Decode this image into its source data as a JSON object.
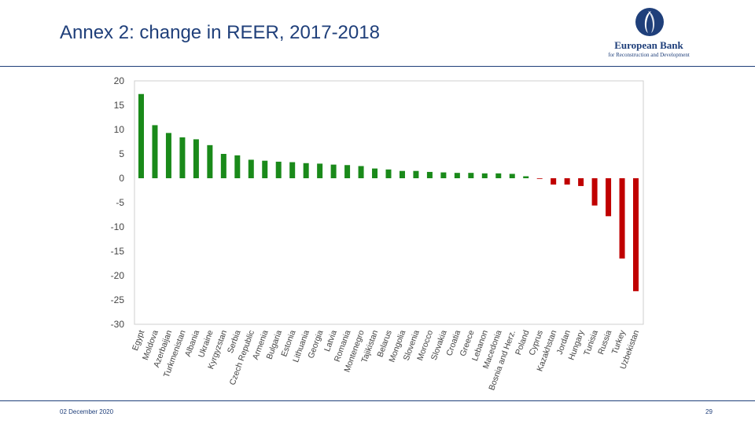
{
  "slide": {
    "title": "Annex 2: change in REER, 2017-2018",
    "date": "02 December 2020",
    "page_number": "29"
  },
  "logo": {
    "name": "European Bank",
    "subtitle": "for Reconstruction and Development"
  },
  "colors": {
    "positive": "#1a8a1a",
    "negative": "#c00000",
    "title": "#1f3f7a"
  },
  "chart_data": {
    "type": "bar",
    "title": "",
    "xlabel": "",
    "ylabel": "",
    "ylim": [
      -30,
      20
    ],
    "yticks": [
      20,
      15,
      10,
      5,
      0,
      -5,
      -10,
      -15,
      -20,
      -25,
      -30
    ],
    "grid": false,
    "categories": [
      "Egypt",
      "Moldova",
      "Azerbaijan",
      "Turkmenistan",
      "Albania",
      "Ukraine",
      "Kyrgyzstan",
      "Serbia",
      "Czech Republic",
      "Armenia",
      "Bulgaria",
      "Estonia",
      "Lithuania",
      "Georgia",
      "Latvia",
      "Romania",
      "Montenegro",
      "Tajikistan",
      "Belarus",
      "Mongolia",
      "Slovenia",
      "Morocco",
      "Slovakia",
      "Croatia",
      "Greece",
      "Lebanon",
      "Macedonia",
      "Bosnia and Herz.",
      "Poland",
      "Cyprus",
      "Kazakhstan",
      "Jordan",
      "Hungary",
      "Tunisia",
      "Russia",
      "Turkey",
      "Uzbekistan"
    ],
    "values": [
      17.3,
      10.9,
      9.3,
      8.4,
      8.0,
      6.8,
      5.0,
      4.7,
      3.8,
      3.6,
      3.4,
      3.3,
      3.1,
      3.0,
      2.8,
      2.7,
      2.5,
      2.0,
      1.8,
      1.5,
      1.5,
      1.3,
      1.2,
      1.1,
      1.1,
      1.0,
      1.0,
      0.9,
      0.4,
      -0.1,
      -1.3,
      -1.3,
      -1.6,
      -5.6,
      -7.8,
      -16.5,
      -23.2
    ]
  }
}
